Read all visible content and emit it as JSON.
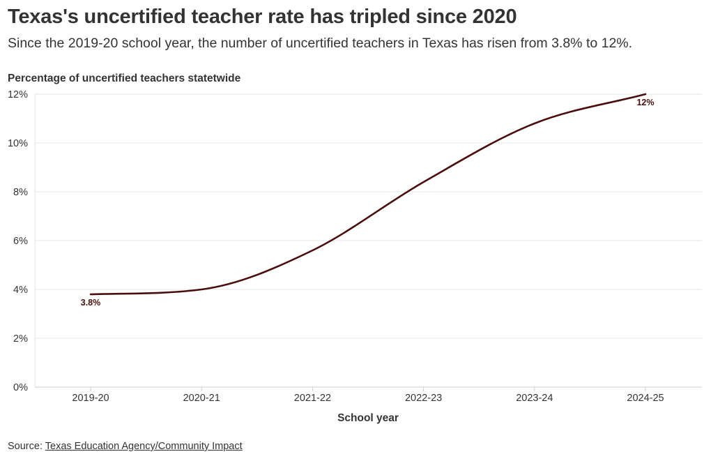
{
  "header": {
    "title": "Texas's uncertified teacher rate has tripled since 2020",
    "subtitle": "Since the 2019-20 school year, the number of uncertified teachers in Texas has risen from 3.8% to 12%."
  },
  "footer": {
    "source_prefix": "Source: ",
    "source_link": "Texas Education Agency/Community Impact"
  },
  "chart_data": {
    "type": "line",
    "title": "Percentage of uncertified teachers statetwide",
    "xlabel": "School year",
    "ylabel": "Percentage of uncertified teachers statetwide",
    "categories": [
      "2019-20",
      "2020-21",
      "2021-22",
      "2022-23",
      "2023-24",
      "2024-25"
    ],
    "series": [
      {
        "values": [
          3.8,
          4.0,
          5.6,
          8.4,
          10.8,
          12.0
        ],
        "color": "#4a0d0d"
      }
    ],
    "ylim": [
      0,
      12
    ],
    "yticks": [
      0,
      2,
      4,
      6,
      8,
      10,
      12
    ],
    "ytick_labels": [
      "0%",
      "2%",
      "4%",
      "6%",
      "8%",
      "10%",
      "12%"
    ],
    "data_labels": [
      {
        "index": 0,
        "text": "3.8%"
      },
      {
        "index": 5,
        "text": "12%"
      }
    ],
    "grid": true,
    "legend": "none",
    "colors": {
      "line": "#4a0d0d",
      "grid": "#e6e6e6",
      "axis": "#cccccc",
      "text": "#333333"
    }
  }
}
